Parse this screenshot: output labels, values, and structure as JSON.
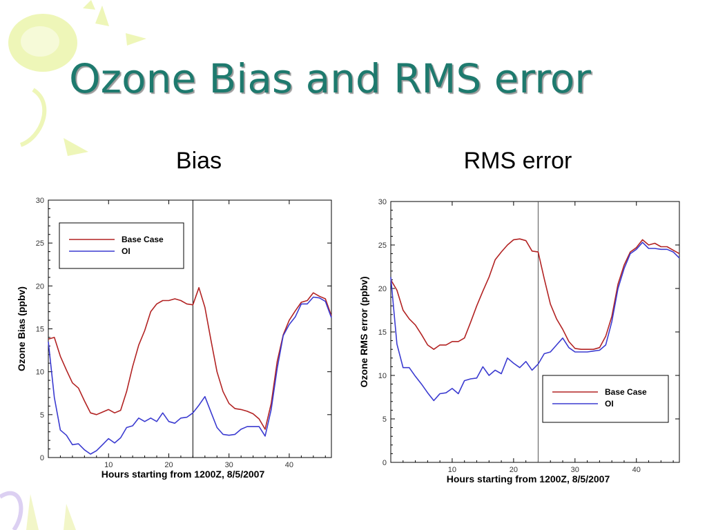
{
  "slide": {
    "title": "Ozone Bias and RMS error",
    "left_heading": "Bias",
    "right_heading": "RMS error"
  },
  "colors": {
    "title": "#1e7a6e",
    "base_case": "#b22222",
    "oi": "#3a3ad0",
    "decoration_yellow": "#e9f3a6",
    "decoration_lavender": "#d8c8f0"
  },
  "chart_data": [
    {
      "type": "line",
      "xlabel": "Hours starting from 1200Z, 8/5/2007",
      "ylabel": "Ozone Bias (ppbv)",
      "xlim": [
        0,
        47
      ],
      "ylim": [
        0,
        30
      ],
      "xticks": [
        10,
        20,
        30,
        40
      ],
      "yticks": [
        0,
        5,
        10,
        15,
        20,
        25,
        30
      ],
      "vline_x": 24,
      "legend_position": "top-left",
      "grid": false,
      "series": [
        {
          "name": "Base Case",
          "color": "#b22222",
          "x": [
            0,
            1,
            2,
            3,
            4,
            5,
            6,
            7,
            8,
            9,
            10,
            11,
            12,
            13,
            14,
            15,
            16,
            17,
            18,
            19,
            20,
            21,
            22,
            23,
            24,
            25,
            26,
            27,
            28,
            29,
            30,
            31,
            32,
            33,
            34,
            35,
            36,
            37,
            38,
            39,
            40,
            41,
            42,
            43,
            44,
            45,
            46,
            47
          ],
          "values": [
            13.8,
            14,
            11.8,
            10.2,
            8.7,
            8.1,
            6.6,
            5.2,
            5.0,
            5.3,
            5.6,
            5.2,
            5.5,
            7.7,
            10.6,
            13.1,
            14.8,
            17.0,
            17.9,
            18.3,
            18.3,
            18.5,
            18.3,
            17.9,
            17.8,
            19.8,
            17.5,
            13.7,
            10.0,
            7.7,
            6.3,
            5.7,
            5.6,
            5.4,
            5.1,
            4.5,
            3.3,
            6.3,
            11.2,
            14.3,
            16.0,
            17.1,
            18.1,
            18.3,
            19.2,
            18.8,
            18.5,
            16.5
          ]
        },
        {
          "name": "OI",
          "color": "#3a3ad0",
          "x": [
            0,
            1,
            2,
            3,
            4,
            5,
            6,
            7,
            8,
            9,
            10,
            11,
            12,
            13,
            14,
            15,
            16,
            17,
            18,
            19,
            20,
            21,
            22,
            23,
            24,
            25,
            26,
            27,
            28,
            29,
            30,
            31,
            32,
            33,
            34,
            35,
            36,
            37,
            38,
            39,
            40,
            41,
            42,
            43,
            44,
            45,
            46,
            47
          ],
          "values": [
            13.5,
            7.0,
            3.2,
            2.6,
            1.5,
            1.6,
            0.9,
            0.4,
            0.8,
            1.5,
            2.2,
            1.7,
            2.3,
            3.5,
            3.7,
            4.6,
            4.2,
            4.6,
            4.2,
            5.2,
            4.2,
            4.0,
            4.6,
            4.7,
            5.2,
            6.1,
            7.1,
            5.3,
            3.5,
            2.7,
            2.6,
            2.7,
            3.3,
            3.6,
            3.6,
            3.6,
            2.5,
            5.6,
            10.4,
            14.2,
            15.5,
            16.4,
            17.9,
            17.9,
            18.7,
            18.6,
            18.2,
            16.3
          ]
        }
      ]
    },
    {
      "type": "line",
      "xlabel": "Hours starting from 1200Z, 8/5/2007",
      "ylabel": "Ozone RMS error (ppbv)",
      "xlim": [
        0,
        47
      ],
      "ylim": [
        0,
        30
      ],
      "xticks": [
        10,
        20,
        30,
        40
      ],
      "yticks": [
        0,
        5,
        10,
        15,
        20,
        25,
        30
      ],
      "vline_x": 24,
      "legend_position": "bottom-right",
      "grid": false,
      "series": [
        {
          "name": "Base Case",
          "color": "#b22222",
          "x": [
            0,
            1,
            2,
            3,
            4,
            5,
            6,
            7,
            8,
            9,
            10,
            11,
            12,
            13,
            14,
            15,
            16,
            17,
            18,
            19,
            20,
            21,
            22,
            23,
            24,
            25,
            26,
            27,
            28,
            29,
            30,
            31,
            32,
            33,
            34,
            35,
            36,
            37,
            38,
            39,
            40,
            41,
            42,
            43,
            44,
            45,
            46,
            47
          ],
          "values": [
            21.0,
            19.8,
            17.5,
            16.5,
            15.8,
            14.7,
            13.5,
            13.0,
            13.5,
            13.5,
            13.9,
            13.9,
            14.3,
            16.1,
            18.0,
            19.7,
            21.3,
            23.3,
            24.2,
            25.0,
            25.6,
            25.7,
            25.5,
            24.3,
            24.2,
            21.1,
            18.2,
            16.5,
            15.3,
            13.9,
            13.1,
            13.0,
            13.0,
            13.0,
            13.2,
            14.5,
            16.8,
            20.5,
            22.7,
            24.2,
            24.7,
            25.6,
            25.0,
            25.2,
            24.8,
            24.8,
            24.4,
            24.0
          ]
        },
        {
          "name": "OI",
          "color": "#3a3ad0",
          "x": [
            0,
            1,
            2,
            3,
            4,
            5,
            6,
            7,
            8,
            9,
            10,
            11,
            12,
            13,
            14,
            15,
            16,
            17,
            18,
            19,
            20,
            21,
            22,
            23,
            24,
            25,
            26,
            27,
            28,
            29,
            30,
            31,
            32,
            33,
            34,
            35,
            36,
            37,
            38,
            39,
            40,
            41,
            42,
            43,
            44,
            45,
            46,
            47
          ],
          "values": [
            21.3,
            13.6,
            10.9,
            10.9,
            9.9,
            9.0,
            8.0,
            7.1,
            7.9,
            8.0,
            8.5,
            7.9,
            9.4,
            9.6,
            9.7,
            11.0,
            10.0,
            10.6,
            10.2,
            12.0,
            11.4,
            10.9,
            11.6,
            10.6,
            11.3,
            12.5,
            12.7,
            13.5,
            14.3,
            13.2,
            12.7,
            12.7,
            12.7,
            12.8,
            12.9,
            13.5,
            16.2,
            20.0,
            22.3,
            24.0,
            24.5,
            25.3,
            24.6,
            24.6,
            24.5,
            24.5,
            24.2,
            23.5
          ]
        }
      ]
    }
  ]
}
